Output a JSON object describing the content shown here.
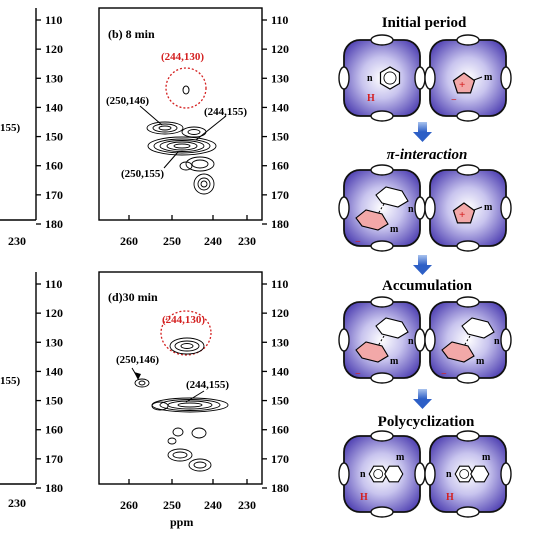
{
  "left_partial": {
    "top_label": "155)",
    "top_tick": "230",
    "bottom_label": "155)",
    "bottom_tick": "230"
  },
  "y_ticks": [
    "110",
    "120",
    "130",
    "140",
    "150",
    "160",
    "170",
    "180"
  ],
  "x_ticks": [
    "260",
    "250",
    "240",
    "230"
  ],
  "x_axis_label": "ppm",
  "panel_b": {
    "title": "(b) 8 min",
    "red_label": "(244,130)",
    "labels": [
      "(250,146)",
      "(244,155)",
      "(250,155)"
    ]
  },
  "panel_d": {
    "title": "(d)30 min",
    "red_label": "(244,130)",
    "labels": [
      "(250,146)",
      "(244,155)"
    ]
  },
  "schematic": {
    "stages": [
      "Initial period",
      "π-interaction",
      "Accumulation",
      "Polycyclization"
    ],
    "n_label": "n",
    "m_label": "m",
    "plus_sign": "+",
    "minus_sign": "−",
    "H_label": "H",
    "colors": {
      "cage": "#4a3aa8",
      "red": "#d42020",
      "arrow": "#3a6cd0"
    }
  }
}
